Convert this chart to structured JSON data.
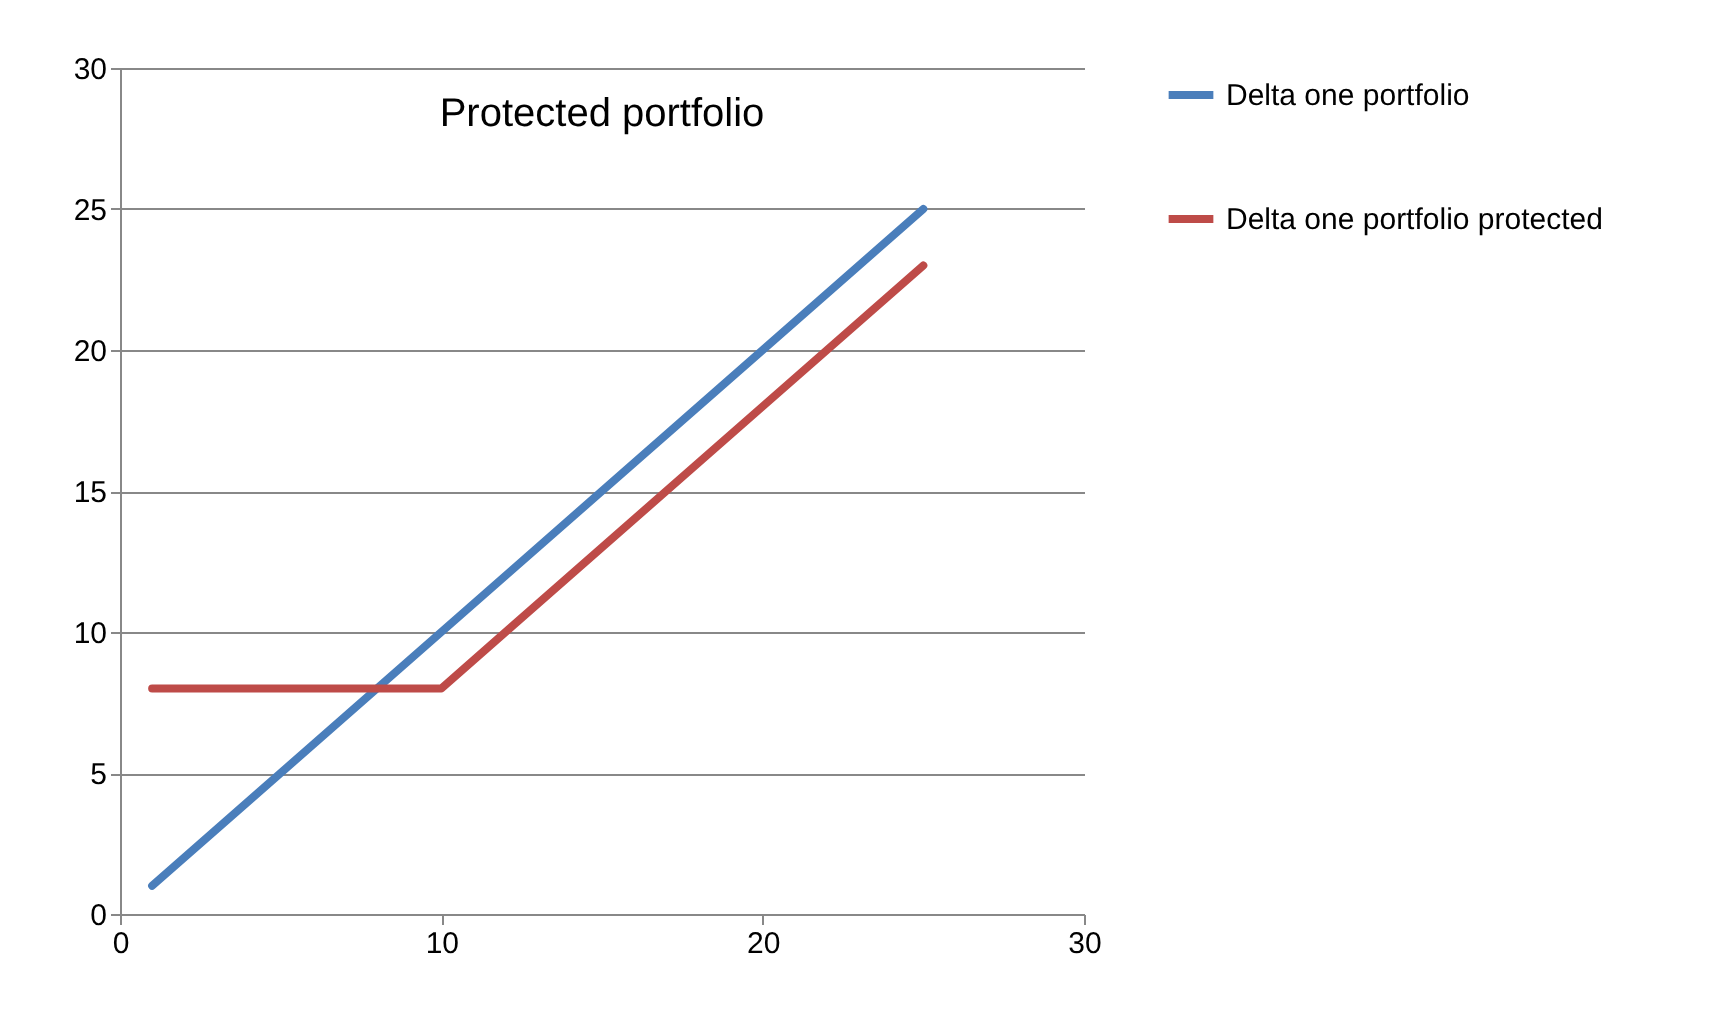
{
  "chart_data": {
    "type": "line",
    "title": "Protected portfolio",
    "series": [
      {
        "name": "Delta one portfolio",
        "color": "#4a7ebb",
        "x": [
          1,
          25
        ],
        "values": [
          1,
          25
        ]
      },
      {
        "name": "Delta one portfolio protected",
        "color": "#be4b48",
        "x": [
          1,
          10,
          25
        ],
        "values": [
          8,
          8,
          23
        ]
      }
    ],
    "xlim": [
      0,
      30
    ],
    "xticks": [
      0,
      10,
      20,
      30
    ],
    "ylim": [
      0,
      30
    ],
    "yticks": [
      0,
      5,
      10,
      15,
      20,
      25,
      30
    ],
    "grid": "y",
    "legend": "right",
    "line_style": "solid",
    "marker": "none"
  }
}
